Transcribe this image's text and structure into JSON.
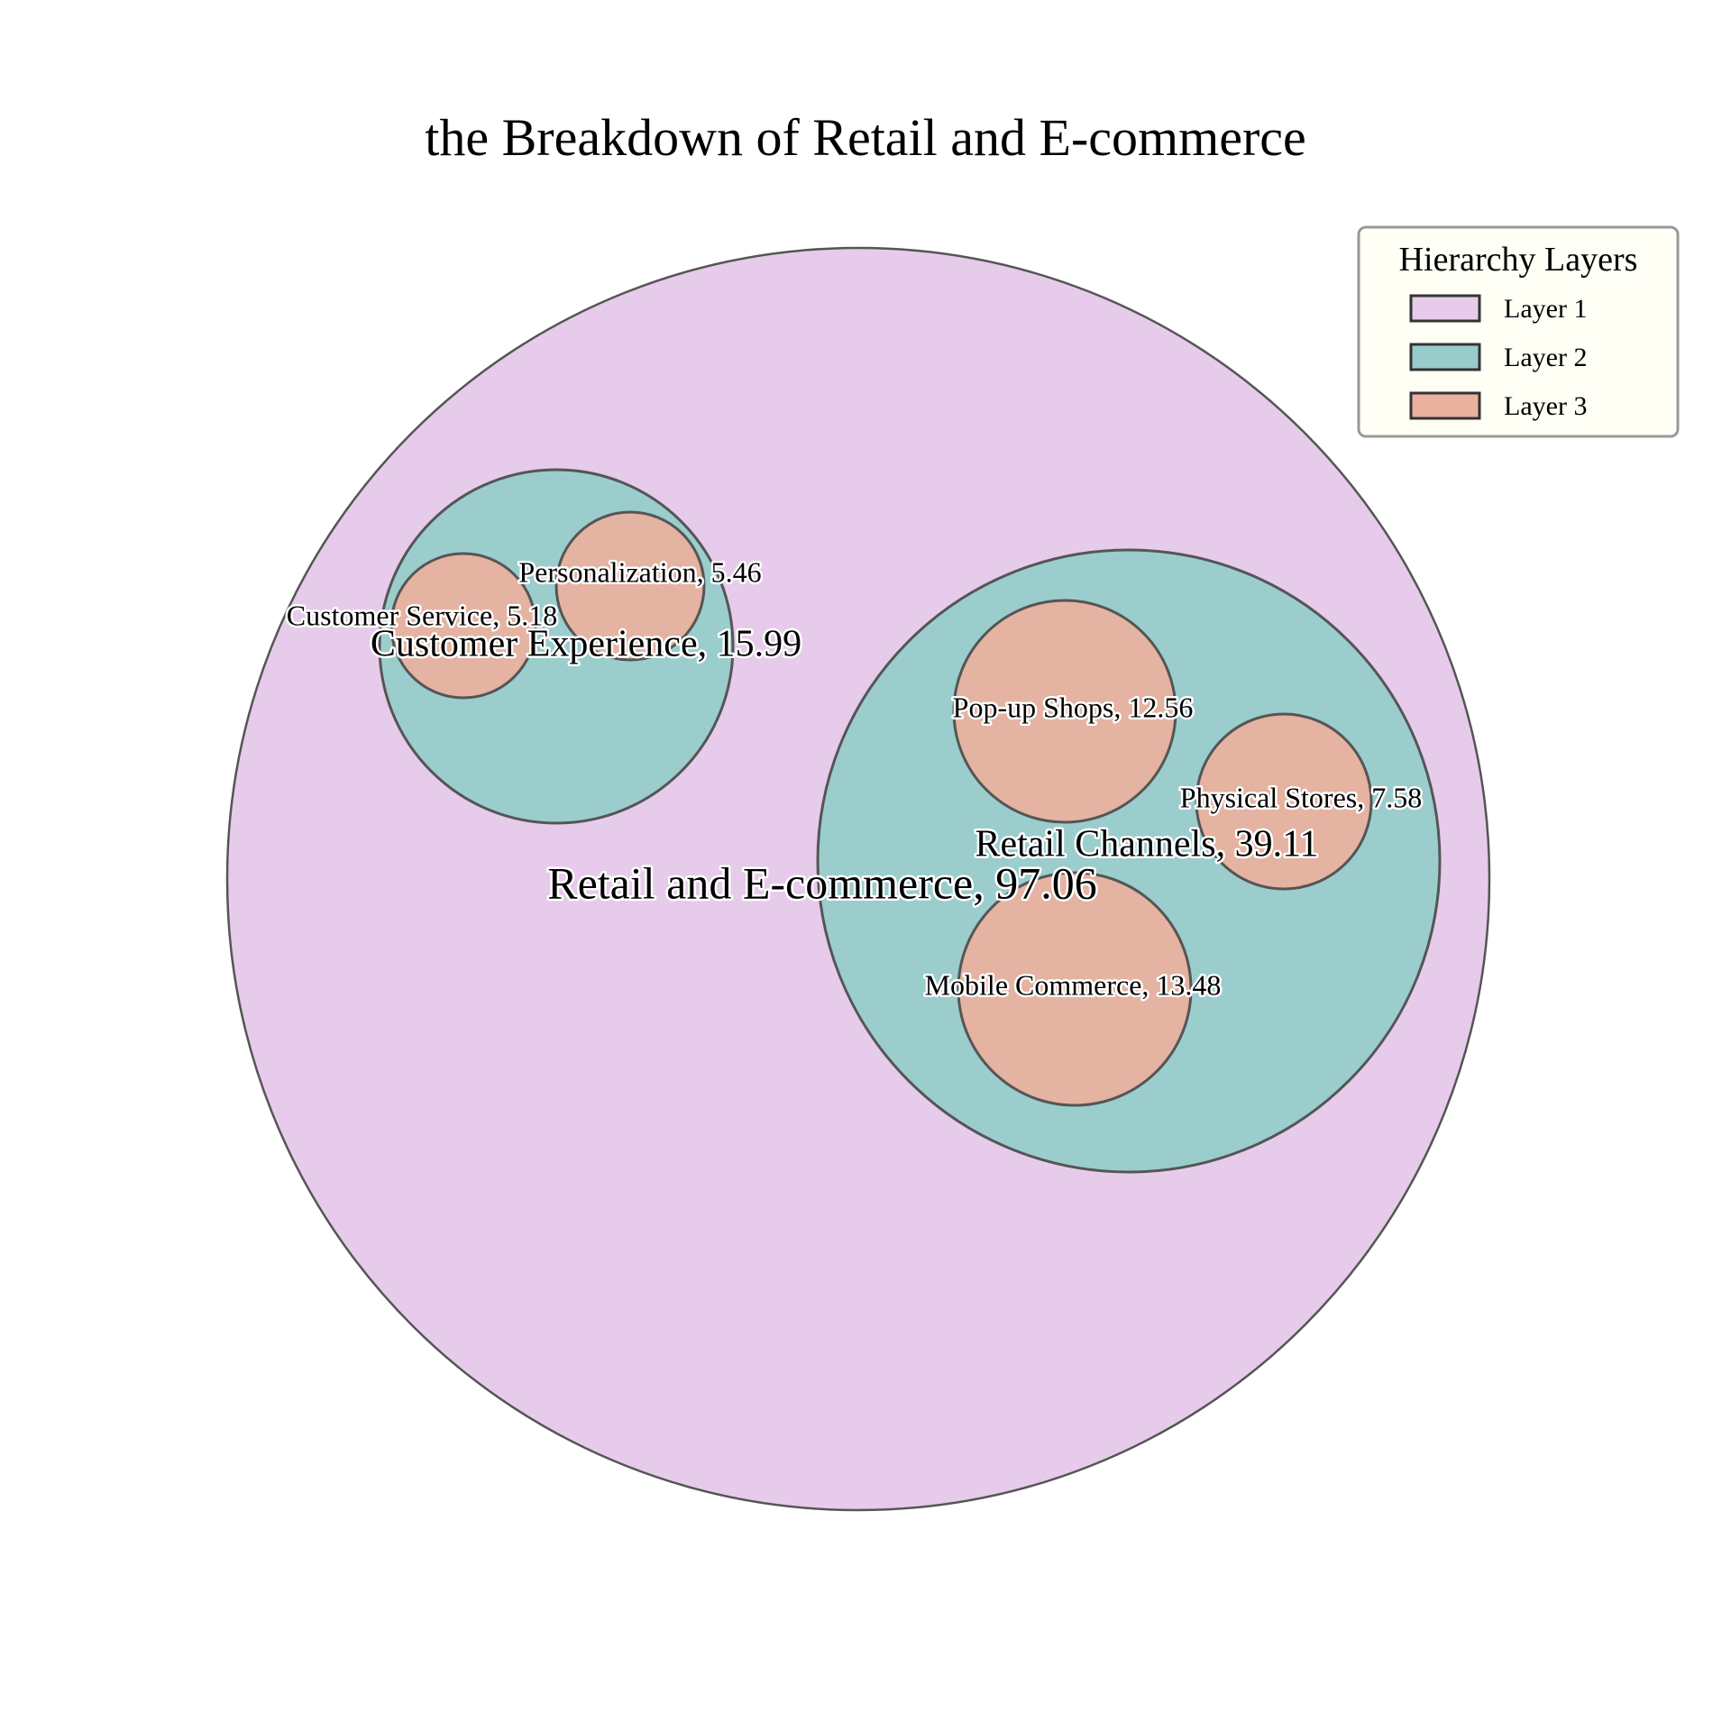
{
  "chart_data": {
    "type": "circle-packing",
    "title": "the Breakdown of Retail and E-commerce",
    "layer_colors": {
      "1": "#e6cbea",
      "2": "#97cccb",
      "3": "#e9b19e"
    },
    "nodes": [
      {
        "id": "root",
        "label": "Retail and E-commerce, 97.06",
        "name": "Retail and E-commerce",
        "value": 97.06,
        "layer": 1,
        "parent": null
      },
      {
        "id": "ce",
        "label": "Customer Experience, 15.99",
        "name": "Customer Experience",
        "value": 15.99,
        "layer": 2,
        "parent": "root"
      },
      {
        "id": "rc",
        "label": "Retail Channels, 39.11",
        "name": "Retail Channels",
        "value": 39.11,
        "layer": 2,
        "parent": "root"
      },
      {
        "id": "per",
        "label": "Personalization, 5.46",
        "name": "Personalization",
        "value": 5.46,
        "layer": 3,
        "parent": "ce"
      },
      {
        "id": "cs",
        "label": "Customer Service, 5.18",
        "name": "Customer Service",
        "value": 5.18,
        "layer": 3,
        "parent": "ce"
      },
      {
        "id": "pop",
        "label": "Pop-up Shops, 12.56",
        "name": "Pop-up Shops",
        "value": 12.56,
        "layer": 3,
        "parent": "rc"
      },
      {
        "id": "ps",
        "label": "Physical Stores, 7.58",
        "name": "Physical Stores",
        "value": 7.58,
        "layer": 3,
        "parent": "rc"
      },
      {
        "id": "mc",
        "label": "Mobile Commerce, 13.48",
        "name": "Mobile Commerce",
        "value": 13.48,
        "layer": 3,
        "parent": "rc"
      }
    ],
    "legend": {
      "title": "Hierarchy Layers",
      "placement": "top-right",
      "entries": [
        "Layer 1",
        "Layer 2",
        "Layer 3"
      ]
    }
  }
}
